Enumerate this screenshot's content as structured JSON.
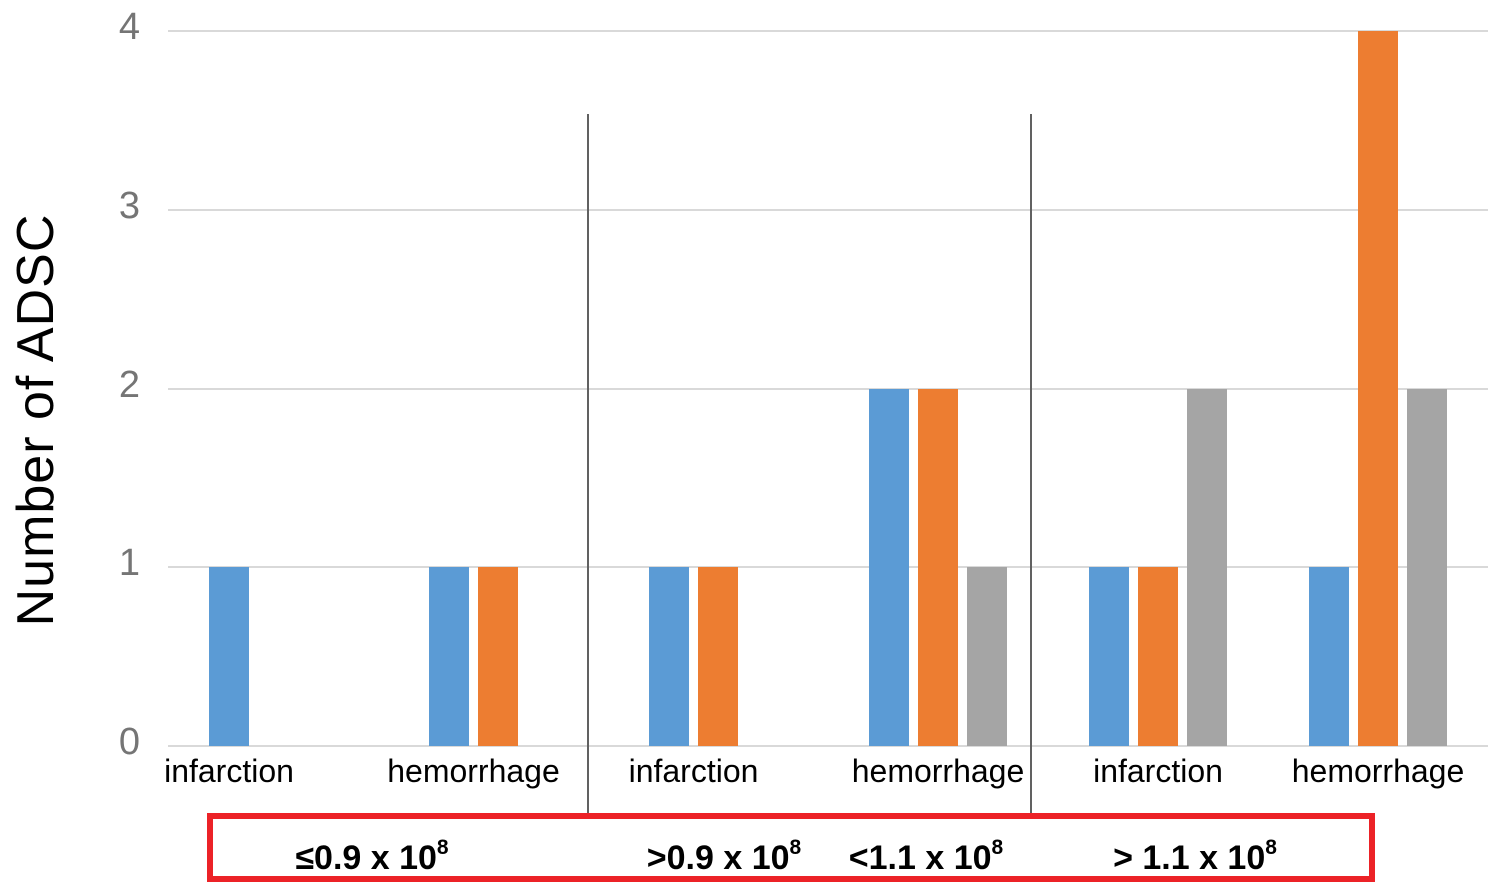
{
  "chart_data": {
    "type": "bar",
    "title": "",
    "ylabel": "Number of ADSC",
    "xlabel": "",
    "ylim": [
      0,
      4
    ],
    "yticks": [
      0,
      1,
      2,
      3,
      4
    ],
    "grid": true,
    "legend": "none",
    "categories": [
      "infarction",
      "hemorrhage",
      "infarction",
      "hemorrhage",
      "infarction",
      "hemorrhage"
    ],
    "series": [
      {
        "name": "series-blue",
        "color": "#5B9BD5",
        "values": [
          1,
          1,
          1,
          2,
          1,
          1
        ]
      },
      {
        "name": "series-orange",
        "color": "#ED7D31",
        "values": [
          0,
          1,
          1,
          2,
          1,
          4
        ]
      },
      {
        "name": "series-gray",
        "color": "#A5A5A5",
        "values": [
          0,
          0,
          0,
          1,
          2,
          2
        ]
      }
    ],
    "dose_labels": [
      {
        "base": "≤0.9 x 10",
        "sup": "8"
      },
      {
        "base": ">0.9 x 10",
        "sup": "8"
      },
      {
        "base": "<1.1 x 10",
        "sup": "8"
      },
      {
        "base": "> 1.1 x 10",
        "sup": "8"
      }
    ]
  },
  "colors": {
    "bar_blue": "#5B9BD5",
    "bar_orange": "#ED7D31",
    "bar_gray": "#A5A5A5",
    "gridline": "#D9D9D9",
    "tick_text": "#757575",
    "separator": "#616161",
    "red_box": "#EC2227",
    "label_text": "#000000"
  }
}
